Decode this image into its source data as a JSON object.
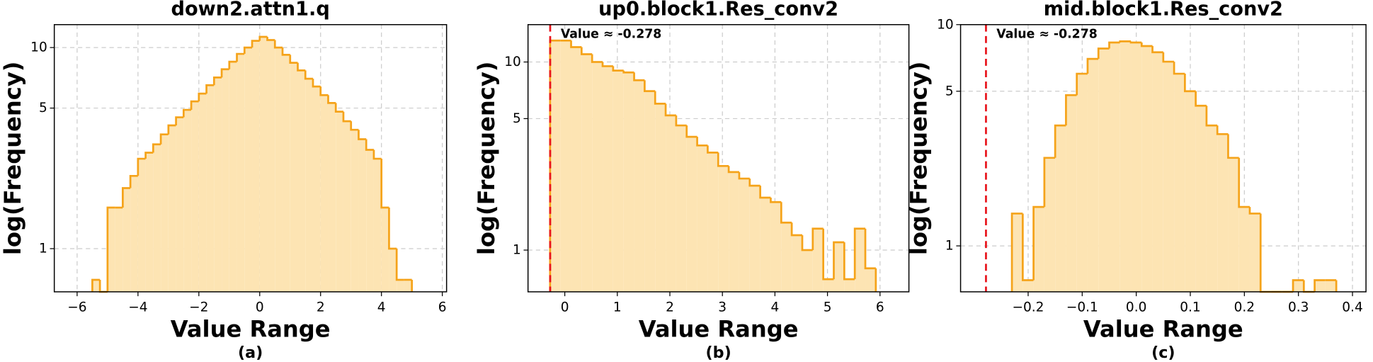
{
  "chart_data": [
    {
      "type": "histogram",
      "title": "down2.attn1.q",
      "xlabel": "Value Range",
      "ylabel": "log(Frequency)",
      "caption": "(a)",
      "log_y": true,
      "grid": true,
      "color": "#f5a31a",
      "fill": "#fde4b3",
      "xlim": [
        -6.75,
        6.14
      ],
      "ylim": [
        0.61,
        13
      ],
      "xticks": [
        {
          "value": -6,
          "label": "−6"
        },
        {
          "value": -4,
          "label": "−4"
        },
        {
          "value": -2,
          "label": "−2"
        },
        0,
        2,
        4,
        6
      ],
      "yticks": [
        1,
        5,
        10
      ],
      "bins": [
        -5.5,
        -5.25,
        -5.0,
        -4.75,
        -4.5,
        -4.25,
        -4.0,
        -3.75,
        -3.5,
        -3.25,
        -3.0,
        -2.75,
        -2.5,
        -2.25,
        -2.0,
        -1.75,
        -1.5,
        -1.25,
        -1.0,
        -0.75,
        -0.5,
        -0.25,
        0,
        0.25,
        0.5,
        0.75,
        1.0,
        1.25,
        1.5,
        1.75,
        2.0,
        2.25,
        2.5,
        2.75,
        3.0,
        3.25,
        3.5,
        3.75,
        4.0,
        4.25,
        4.5,
        4.75,
        5.0
      ],
      "counts": [
        0.7,
        0,
        1.6,
        1.6,
        2.0,
        2.3,
        2.8,
        3.0,
        3.3,
        3.7,
        4.1,
        4.5,
        4.9,
        5.4,
        5.9,
        6.5,
        7.1,
        7.8,
        8.5,
        9.3,
        10.0,
        10.8,
        11.3,
        10.9,
        10.0,
        9.2,
        8.4,
        7.7,
        7.0,
        6.4,
        5.8,
        5.3,
        4.8,
        4.3,
        3.9,
        3.5,
        3.1,
        2.8,
        1.6,
        1.0,
        0.7,
        0.7
      ]
    },
    {
      "type": "histogram",
      "title": "up0.block1.Res_conv2",
      "xlabel": "Value Range",
      "ylabel": "log(Frequency)",
      "caption": "(b)",
      "log_y": true,
      "grid": true,
      "color": "#f5a31a",
      "fill": "#fde4b3",
      "xlim": [
        -0.7,
        6.55
      ],
      "ylim": [
        0.6,
        15.8
      ],
      "xticks": [
        0,
        1,
        2,
        3,
        4,
        5,
        6
      ],
      "yticks": [
        1,
        5,
        10
      ],
      "vline": {
        "value": -0.278,
        "label": "Value ≈ -0.278",
        "color": "#e8141c"
      },
      "bins": [
        -0.28,
        -0.08,
        0.12,
        0.32,
        0.52,
        0.72,
        0.92,
        1.12,
        1.32,
        1.52,
        1.72,
        1.92,
        2.12,
        2.32,
        2.52,
        2.72,
        2.92,
        3.12,
        3.32,
        3.52,
        3.72,
        3.92,
        4.12,
        4.32,
        4.52,
        4.72,
        4.92,
        5.12,
        5.32,
        5.52,
        5.72,
        5.92
      ],
      "counts": [
        13,
        13,
        12,
        11,
        10,
        9.5,
        9.0,
        8.8,
        8.0,
        7.0,
        6.0,
        5.2,
        4.6,
        4.0,
        3.6,
        3.3,
        2.8,
        2.6,
        2.4,
        2.2,
        1.9,
        1.8,
        1.4,
        1.2,
        1.0,
        1.3,
        0.7,
        1.1,
        0.7,
        1.3,
        0.8
      ]
    },
    {
      "type": "histogram",
      "title": "mid.block1.Res_conv2",
      "xlabel": "Value Range",
      "ylabel": "log(Frequency)",
      "caption": "(c)",
      "log_y": true,
      "grid": true,
      "color": "#f5a31a",
      "fill": "#fde4b3",
      "xlim": [
        -0.325,
        0.425
      ],
      "ylim": [
        0.62,
        10
      ],
      "xticks": [
        {
          "value": -0.2,
          "label": "−0.2"
        },
        {
          "value": -0.1,
          "label": "−0.1"
        },
        {
          "value": 0,
          "label": "0.0"
        },
        0.1,
        0.2,
        0.3,
        0.4
      ],
      "yticks": [
        1,
        5,
        10
      ],
      "vline": {
        "value": -0.278,
        "label": "Value ≈ -0.278",
        "color": "#e8141c"
      },
      "bins": [
        -0.23,
        -0.21,
        -0.19,
        -0.17,
        -0.15,
        -0.13,
        -0.11,
        -0.09,
        -0.07,
        -0.05,
        -0.03,
        -0.01,
        0.01,
        0.03,
        0.05,
        0.07,
        0.09,
        0.11,
        0.13,
        0.15,
        0.17,
        0.19,
        0.21,
        0.23,
        0.25,
        0.27,
        0.29,
        0.31,
        0.33,
        0.35,
        0.37
      ],
      "counts": [
        1.4,
        0.7,
        1.5,
        2.5,
        3.5,
        4.8,
        6.0,
        7.0,
        7.8,
        8.3,
        8.4,
        8.3,
        8.0,
        7.5,
        6.8,
        6.0,
        5.0,
        4.3,
        3.5,
        3.2,
        2.5,
        1.5,
        1.4,
        0,
        0,
        0,
        0.7,
        0,
        0.7,
        0.7
      ]
    }
  ]
}
